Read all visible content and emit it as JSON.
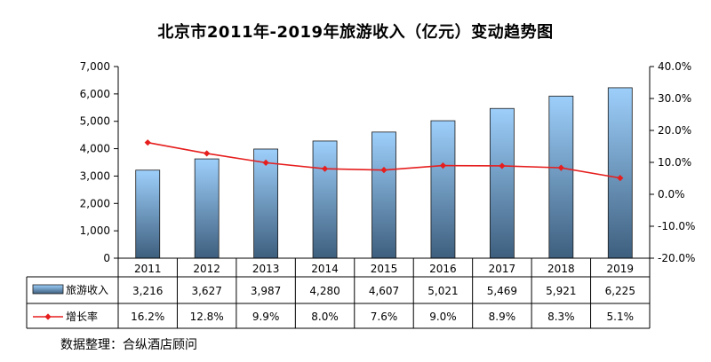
{
  "chart_data": {
    "type": "bar",
    "title": "北京市2011年-2019年旅游收入（亿元）变动趋势图",
    "categories": [
      "2011",
      "2012",
      "2013",
      "2014",
      "2015",
      "2016",
      "2017",
      "2018",
      "2019"
    ],
    "series": [
      {
        "name": "旅游收入",
        "type": "bar",
        "axis": "left",
        "values": [
          3216,
          3627,
          3987,
          4280,
          4607,
          5021,
          5469,
          5921,
          6225
        ],
        "labels": [
          "3,216",
          "3,627",
          "3,987",
          "4,280",
          "4,607",
          "5,021",
          "5,469",
          "5,921",
          "6,225"
        ]
      },
      {
        "name": "增长率",
        "type": "line",
        "axis": "right",
        "values": [
          16.2,
          12.8,
          9.9,
          8.0,
          7.6,
          9.0,
          8.9,
          8.3,
          5.1
        ],
        "labels": [
          "16.2%",
          "12.8%",
          "9.9%",
          "8.0%",
          "7.6%",
          "9.0%",
          "8.9%",
          "8.3%",
          "5.1%"
        ]
      }
    ],
    "y_left": {
      "range": [
        0,
        7000
      ],
      "ticks": [
        0,
        1000,
        2000,
        3000,
        4000,
        5000,
        6000,
        7000
      ],
      "tick_labels": [
        "0",
        "1,000",
        "2,000",
        "3,000",
        "4,000",
        "5,000",
        "6,000",
        "7,000"
      ]
    },
    "y_right": {
      "range": [
        -20,
        40
      ],
      "ticks": [
        -20,
        -10,
        0,
        10,
        20,
        30,
        40
      ],
      "tick_labels": [
        "-20.0%",
        "-10.0%",
        "0.0%",
        "10.0%",
        "20.0%",
        "30.0%",
        "40.0%"
      ]
    },
    "grid": false,
    "legend": "data-table",
    "colors": {
      "bar_top": "#9DCFFB",
      "bar_bottom": "#3E5F7E",
      "bar_stroke": "#1a1a1a",
      "line": "#E61E1E"
    }
  },
  "source_note": "数据整理：合纵酒店顾问"
}
